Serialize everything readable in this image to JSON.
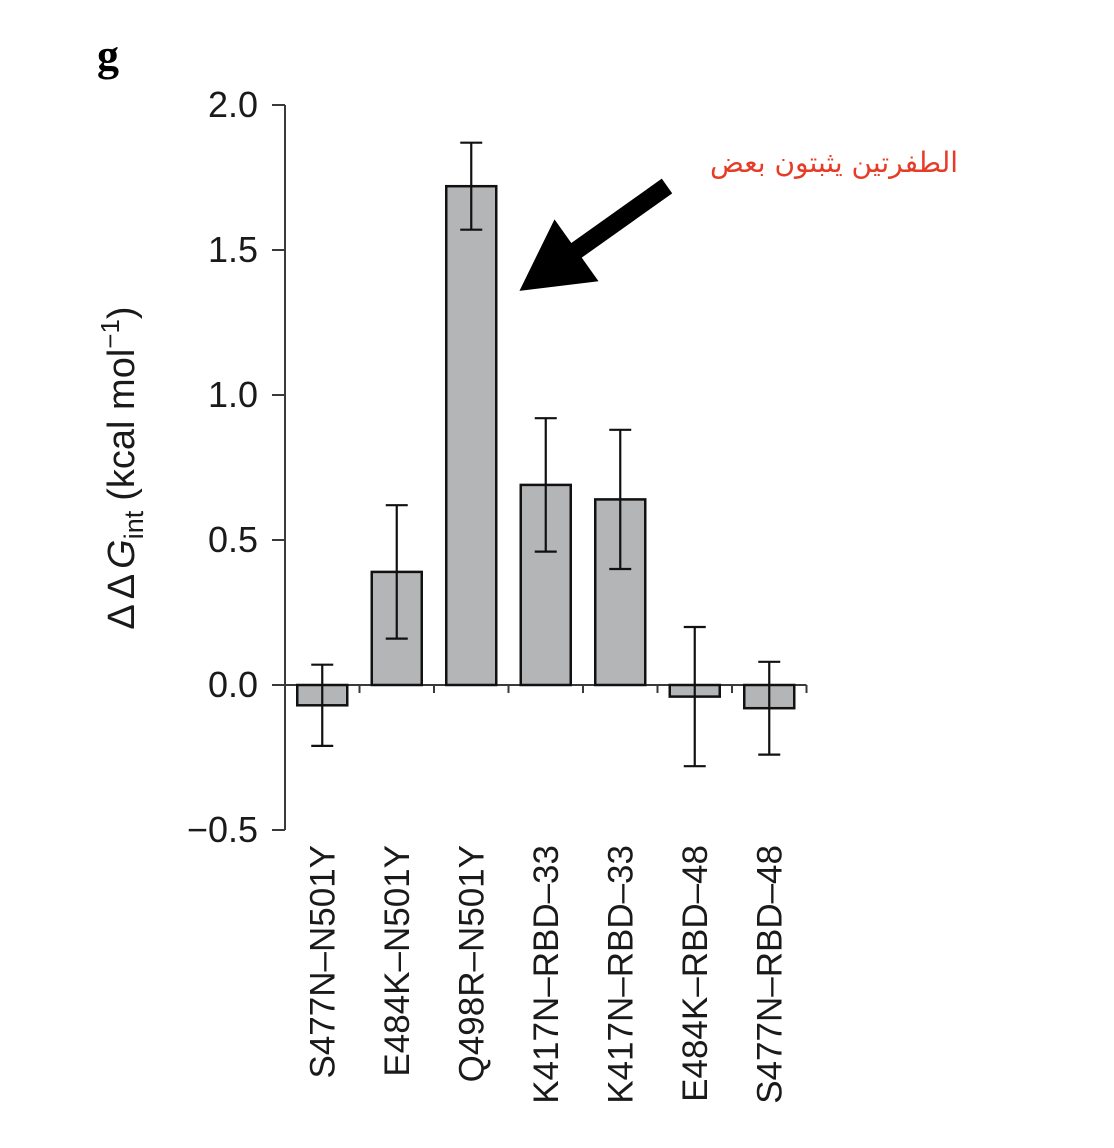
{
  "panel_label": "g",
  "annotation": {
    "text": "الطفرتين يثبتون بعض",
    "color": "#e63b26"
  },
  "chart_data": {
    "type": "bar",
    "categories": [
      "S477N–N501Y",
      "E484K–N501Y",
      "Q498R–N501Y",
      "K417N–RBD–33",
      "K417N–RBD–33",
      "E484K–RBD–48",
      "S477N–RBD–48"
    ],
    "values": [
      -0.07,
      0.39,
      1.72,
      0.69,
      0.64,
      -0.04,
      -0.08
    ],
    "error": [
      0.14,
      0.23,
      0.15,
      0.23,
      0.24,
      0.24,
      0.16
    ],
    "ylabel": {
      "prefix": "ΔΔ",
      "symbol": "G",
      "subscript": "int",
      "unit": "(kcal mol",
      "superscript": "−1",
      "suffix": ")"
    },
    "yticks": [
      -0.5,
      0.0,
      0.5,
      1.0,
      1.5,
      2.0
    ],
    "ytick_labels": [
      "−0.5",
      "0.0",
      "0.5",
      "1.0",
      "1.5",
      "2.0"
    ],
    "ylim": [
      -0.5,
      2.0
    ],
    "grid": false,
    "error_bars": true,
    "bar_color": "#b4b5b7"
  }
}
